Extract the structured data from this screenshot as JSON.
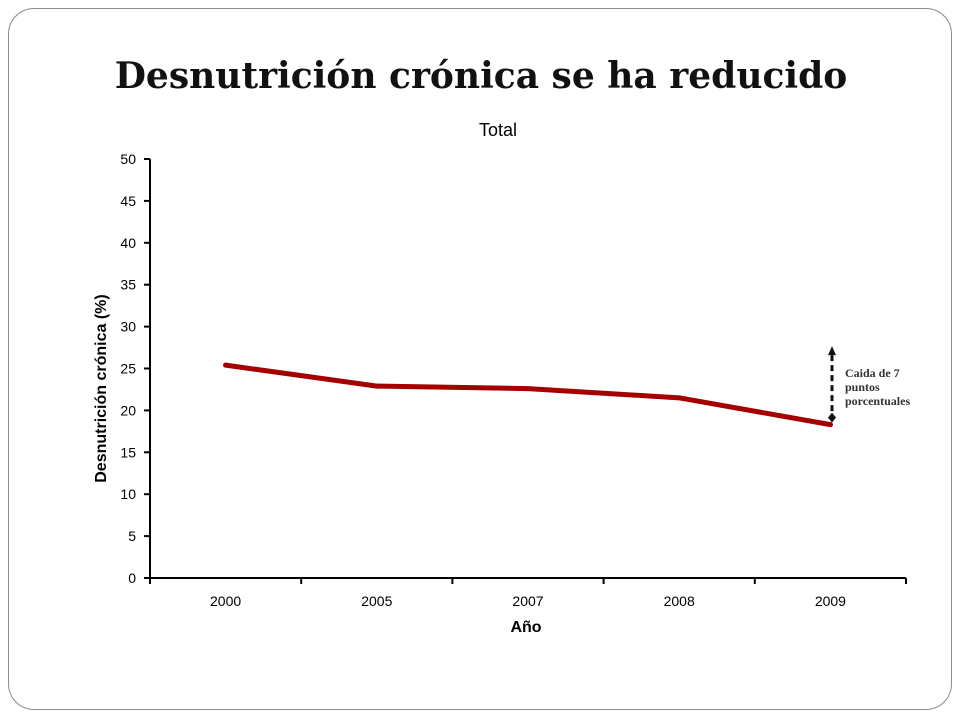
{
  "slide": {
    "title": "Desnutrición crónica se ha reducido"
  },
  "chart_data": {
    "type": "line",
    "title": "Total",
    "xlabel": "Año",
    "ylabel": "Desnutrición crónica (%)",
    "categories": [
      "2000",
      "2005",
      "2007",
      "2008",
      "2009"
    ],
    "series": [
      {
        "values": [
          25.4,
          22.9,
          22.6,
          21.5,
          18.3
        ],
        "color": "#a50000"
      }
    ],
    "ylim": [
      0,
      50
    ],
    "yticks": [
      0,
      5,
      10,
      15,
      20,
      25,
      30,
      35,
      40,
      45,
      50
    ],
    "grid": false,
    "annotation": {
      "lines": [
        "Caida de 7",
        "puntos",
        "porcentuales"
      ],
      "from": 25.4,
      "to": 18.3
    }
  }
}
